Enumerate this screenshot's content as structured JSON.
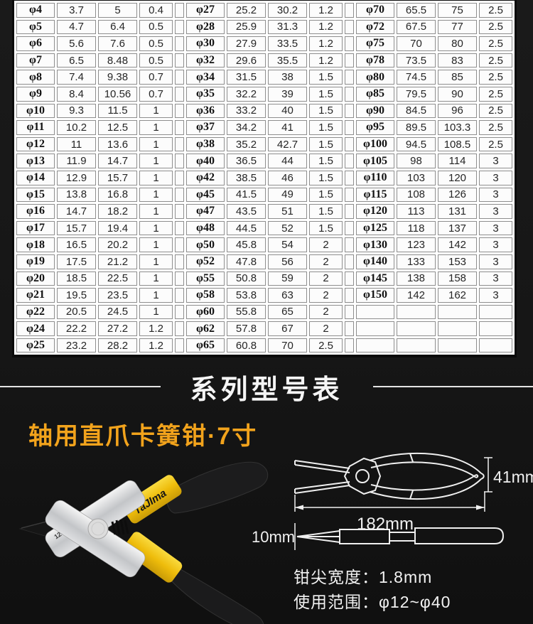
{
  "spec_table": {
    "groups": [
      {
        "rows": [
          [
            "φ4",
            "3.7",
            "5",
            "0.4"
          ],
          [
            "φ5",
            "4.7",
            "6.4",
            "0.5"
          ],
          [
            "φ6",
            "5.6",
            "7.6",
            "0.5"
          ],
          [
            "φ7",
            "6.5",
            "8.48",
            "0.5"
          ],
          [
            "φ8",
            "7.4",
            "9.38",
            "0.7"
          ],
          [
            "φ9",
            "8.4",
            "10.56",
            "0.7"
          ],
          [
            "φ10",
            "9.3",
            "11.5",
            "1"
          ],
          [
            "φ11",
            "10.2",
            "12.5",
            "1"
          ],
          [
            "φ12",
            "11",
            "13.6",
            "1"
          ],
          [
            "φ13",
            "11.9",
            "14.7",
            "1"
          ],
          [
            "φ14",
            "12.9",
            "15.7",
            "1"
          ],
          [
            "φ15",
            "13.8",
            "16.8",
            "1"
          ],
          [
            "φ16",
            "14.7",
            "18.2",
            "1"
          ],
          [
            "φ17",
            "15.7",
            "19.4",
            "1"
          ],
          [
            "φ18",
            "16.5",
            "20.2",
            "1"
          ],
          [
            "φ19",
            "17.5",
            "21.2",
            "1"
          ],
          [
            "φ20",
            "18.5",
            "22.5",
            "1"
          ],
          [
            "φ21",
            "19.5",
            "23.5",
            "1"
          ],
          [
            "φ22",
            "20.5",
            "24.5",
            "1"
          ],
          [
            "φ24",
            "22.2",
            "27.2",
            "1.2"
          ],
          [
            "φ25",
            "23.2",
            "28.2",
            "1.2"
          ]
        ]
      },
      {
        "rows": [
          [
            "φ27",
            "25.2",
            "30.2",
            "1.2"
          ],
          [
            "φ28",
            "25.9",
            "31.3",
            "1.2"
          ],
          [
            "φ30",
            "27.9",
            "33.5",
            "1.2"
          ],
          [
            "φ32",
            "29.6",
            "35.5",
            "1.2"
          ],
          [
            "φ34",
            "31.5",
            "38",
            "1.5"
          ],
          [
            "φ35",
            "32.2",
            "39",
            "1.5"
          ],
          [
            "φ36",
            "33.2",
            "40",
            "1.5"
          ],
          [
            "φ37",
            "34.2",
            "41",
            "1.5"
          ],
          [
            "φ38",
            "35.2",
            "42.7",
            "1.5"
          ],
          [
            "φ40",
            "36.5",
            "44",
            "1.5"
          ],
          [
            "φ42",
            "38.5",
            "46",
            "1.5"
          ],
          [
            "φ45",
            "41.5",
            "49",
            "1.5"
          ],
          [
            "φ47",
            "43.5",
            "51",
            "1.5"
          ],
          [
            "φ48",
            "44.5",
            "52",
            "1.5"
          ],
          [
            "φ50",
            "45.8",
            "54",
            "2"
          ],
          [
            "φ52",
            "47.8",
            "56",
            "2"
          ],
          [
            "φ55",
            "50.8",
            "59",
            "2"
          ],
          [
            "φ58",
            "53.8",
            "63",
            "2"
          ],
          [
            "φ60",
            "55.8",
            "65",
            "2"
          ],
          [
            "φ62",
            "57.8",
            "67",
            "2"
          ],
          [
            "φ65",
            "60.8",
            "70",
            "2.5"
          ]
        ]
      },
      {
        "rows": [
          [
            "φ70",
            "65.5",
            "75",
            "2.5"
          ],
          [
            "φ72",
            "67.5",
            "77",
            "2.5"
          ],
          [
            "φ75",
            "70",
            "80",
            "2.5"
          ],
          [
            "φ78",
            "73.5",
            "83",
            "2.5"
          ],
          [
            "φ80",
            "74.5",
            "85",
            "2.5"
          ],
          [
            "φ85",
            "79.5",
            "90",
            "2.5"
          ],
          [
            "φ90",
            "84.5",
            "96",
            "2.5"
          ],
          [
            "φ95",
            "89.5",
            "103.3",
            "2.5"
          ],
          [
            "φ100",
            "94.5",
            "108.5",
            "2.5"
          ],
          [
            "φ105",
            "98",
            "114",
            "3"
          ],
          [
            "φ110",
            "103",
            "120",
            "3"
          ],
          [
            "φ115",
            "108",
            "126",
            "3"
          ],
          [
            "φ120",
            "113",
            "131",
            "3"
          ],
          [
            "φ125",
            "118",
            "137",
            "3"
          ],
          [
            "φ130",
            "123",
            "142",
            "3"
          ],
          [
            "φ140",
            "133",
            "153",
            "3"
          ],
          [
            "φ145",
            "138",
            "158",
            "3"
          ],
          [
            "φ150",
            "142",
            "162",
            "3"
          ],
          [
            "",
            "",
            "",
            ""
          ],
          [
            "",
            "",
            "",
            ""
          ],
          [
            "",
            "",
            "",
            ""
          ]
        ]
      }
    ]
  },
  "series_header": {
    "title": "系列型号表"
  },
  "product": {
    "title": "轴用直爪卡簧钳·7寸",
    "title_color": "#f2a31c",
    "photo": {
      "brand_label": "TaJIma",
      "model_label": "1206-2075"
    },
    "diagram": {
      "height_label": "41mm",
      "length_label": "182mm",
      "width_label": "10mm"
    },
    "specs": [
      {
        "text": "钳尖宽度：1.8mm"
      },
      {
        "text": "使用范围：φ12~φ40"
      }
    ]
  }
}
